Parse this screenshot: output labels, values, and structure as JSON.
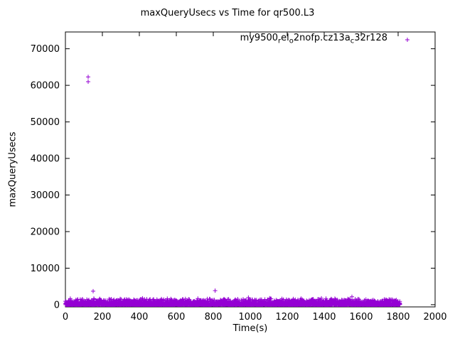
{
  "title": "maxQueryUsecs vs Time for qr500.L3",
  "chart_data": {
    "type": "scatter",
    "title": "maxQueryUsecs vs Time for qr500.L3",
    "xlabel": "Time(s)",
    "ylabel": "maxQueryUsecs",
    "xlim": [
      0,
      2000
    ],
    "ylim": [
      -600,
      74600
    ],
    "xticks": [
      0,
      200,
      400,
      600,
      800,
      1000,
      1200,
      1400,
      1600,
      1800,
      2000
    ],
    "yticks": [
      0,
      10000,
      20000,
      30000,
      40000,
      50000,
      60000,
      70000
    ],
    "grid": false,
    "frame_color": "#000000",
    "background_color": "#ffffff",
    "legend": {
      "position": "top-right-inside",
      "marker": "plus",
      "label_raw": "my9500_rel_o2nofp.cz13a_c32r128",
      "segments": [
        {
          "text": "my9500",
          "sub": false
        },
        {
          "text": "r",
          "sub": true
        },
        {
          "text": "el",
          "sub": false
        },
        {
          "text": "o",
          "sub": true
        },
        {
          "text": "2nofp.cz13a",
          "sub": false
        },
        {
          "text": "c",
          "sub": true
        },
        {
          "text": "32r128",
          "sub": false
        }
      ]
    },
    "series": [
      {
        "name": "my9500_rel_o2nofp.cz13a_c32r128",
        "marker": "plus",
        "color": "#9400d3",
        "outliers": [
          [
            123,
            62300
          ],
          [
            123,
            61000
          ],
          [
            150,
            3700
          ],
          [
            810,
            3850
          ],
          [
            990,
            1950
          ],
          [
            1385,
            1750
          ],
          [
            1550,
            2150
          ],
          [
            1762,
            1400
          ]
        ],
        "dense_band": {
          "comment": "thousands of per-second samples hugging zero",
          "t_start": 0,
          "t_end": 1810,
          "n_points": 3000,
          "y_typical_max": 1800,
          "seed": 42
        }
      }
    ]
  }
}
